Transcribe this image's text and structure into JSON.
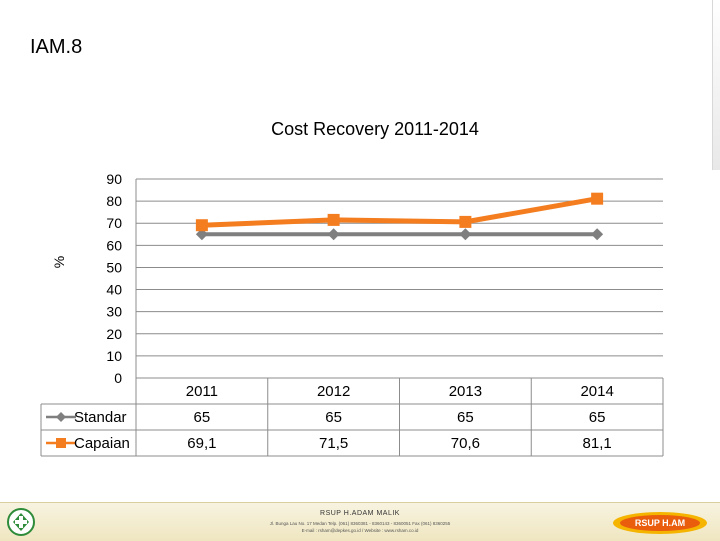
{
  "slide": {
    "title": "IAM.8"
  },
  "footer": {
    "org": "RSUP H.ADAM MALIK",
    "address": "Jl. Bunga Lau No. 17 Medan Telp. (061) 8360381 - 8360143 - 8360051 Fax (061) 8360255",
    "web": "E-mail : rsham@depkes.go.id / Website : www.rsham.co.id",
    "logo_text": "RSUP H.AM"
  },
  "chart_data": {
    "type": "line",
    "title": "Cost Recovery 2011-2014",
    "ylabel": "%",
    "xlabel": "",
    "ylim": [
      0,
      90
    ],
    "yticks": [
      "90",
      "80",
      "70",
      "60",
      "50",
      "40",
      "30",
      "20",
      "10",
      "0"
    ],
    "categories": [
      "2011",
      "2012",
      "2013",
      "2014"
    ],
    "grid": true,
    "legend": "data-table",
    "series": [
      {
        "name": "Standar",
        "values": [
          65,
          65,
          65,
          65
        ],
        "labels": [
          "65",
          "65",
          "65",
          "65"
        ],
        "color": "#7f7f7f",
        "marker": "diamond"
      },
      {
        "name": "Capaian",
        "values": [
          69.1,
          71.5,
          70.6,
          81.1
        ],
        "labels": [
          "69,1",
          "71,5",
          "70,6",
          "81,1"
        ],
        "color": "#f47d20",
        "marker": "square"
      }
    ]
  }
}
